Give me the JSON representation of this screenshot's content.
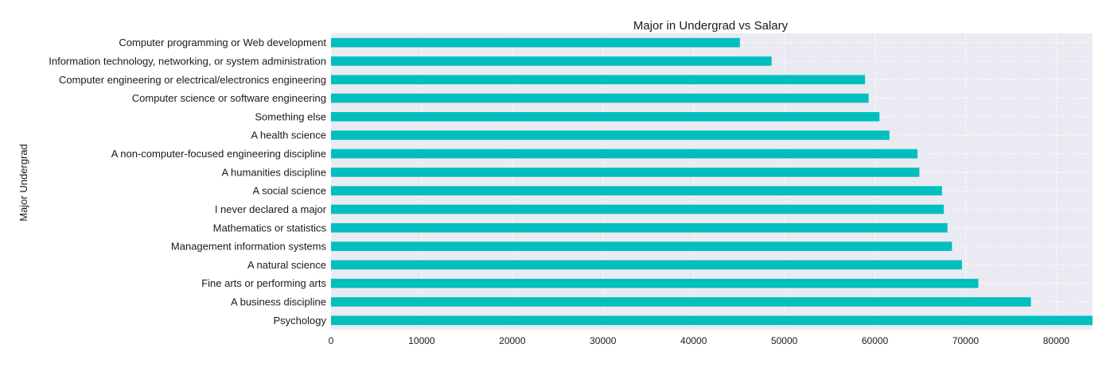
{
  "chart_data": {
    "type": "bar",
    "orientation": "horizontal",
    "title": "Major in Undergrad vs Salary",
    "xlabel": "",
    "ylabel": "Major Undergrad",
    "xlim": [
      0,
      84000
    ],
    "xticks": [
      0,
      10000,
      20000,
      30000,
      40000,
      50000,
      60000,
      70000,
      80000
    ],
    "grid": true,
    "bar_color": "#00bfbf",
    "plot_background": "#eaeaf2",
    "categories": [
      "Computer programming or Web development",
      "Information technology, networking, or system administration",
      "Computer engineering or electrical/electronics engineering",
      "Computer science or software engineering",
      "Something else",
      "A health science",
      "A non-computer-focused engineering discipline",
      "A humanities discipline",
      "A social science",
      "I never declared a major",
      "Mathematics or statistics",
      "Management information systems",
      "A natural science",
      "Fine arts or performing arts",
      "A business discipline",
      "Psychology"
    ],
    "values": [
      45100,
      48600,
      58900,
      59300,
      60500,
      61600,
      64700,
      64900,
      67400,
      67600,
      68000,
      68500,
      69600,
      71400,
      77200,
      84000
    ]
  }
}
